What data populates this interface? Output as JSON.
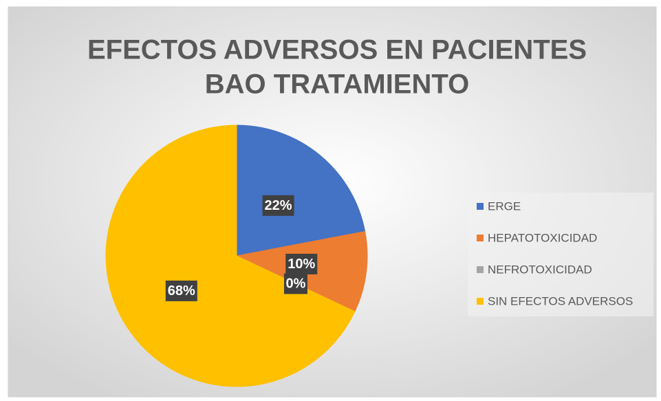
{
  "chart_data": {
    "type": "pie",
    "title": [
      "EFECTOS ADVERSOS EN PACIENTES",
      "BAO TRATAMIENTO"
    ],
    "categories": [
      "ERGE",
      "HEPATOTOXICIDAD",
      "NEFROTOXICIDAD",
      "SIN EFECTOS ADVERSOS"
    ],
    "values": [
      22,
      10,
      0,
      68
    ],
    "value_labels": [
      "22%",
      "10%",
      "0%",
      "68%"
    ],
    "colors": [
      "#4472c4",
      "#ed7d31",
      "#a5a5a5",
      "#ffc000"
    ],
    "legend": "right"
  }
}
